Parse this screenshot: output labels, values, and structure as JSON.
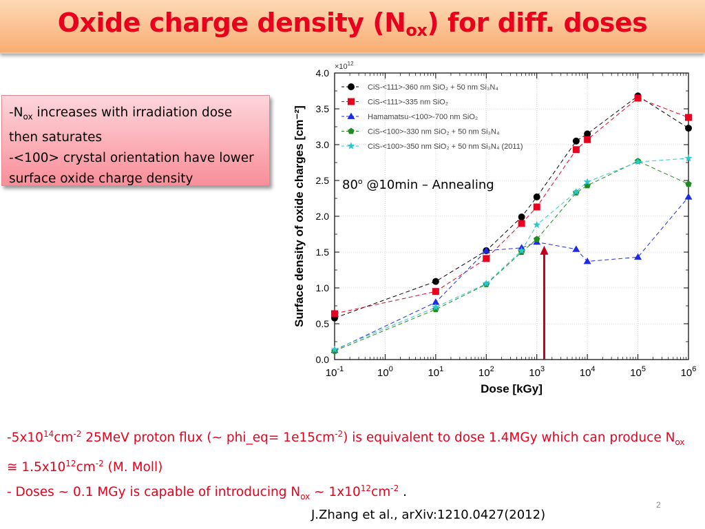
{
  "slide": {
    "title_main": "Oxide charge density (N",
    "title_sub": "ox",
    "title_end": ") for diff. doses",
    "note": {
      "line1_a": "-N",
      "line1_sub": "ox",
      "line1_b": " increases with irradiation dose then saturates",
      "line2": "-<100> crystal orientation have lower surface oxide charge density"
    },
    "annealing": {
      "a": "80",
      "sup": "o",
      "b": " @10min – Annealing"
    },
    "bottom": {
      "p1_a": "-5x10",
      "p1_sup1": "14",
      "p1_b": "cm",
      "p1_sup2": "-2",
      "p1_c": "  25MeV proton flux (~ phi_eq= 1e15cm",
      "p1_sup3": "-2",
      "p1_d": ") is equivalent to dose 1.4MGy which can produce N",
      "p1_sub": "ox",
      "p1_e": " ≅ 1.5x10",
      "p1_sup4": "12",
      "p1_f": "cm",
      "p1_sup5": "-2",
      "p1_g": "  (M. Moll)",
      "p2_a": "- Doses ~ 0.1 MGy is capable of introducing N",
      "p2_sub": "ox",
      "p2_b": " ~ 1x10",
      "p2_sup1": "12",
      "p2_c": "cm",
      "p2_sup2": "-2",
      "p2_d": " ."
    },
    "page_number": "2",
    "citation": "J.Zhang et al., arXiv:1210.0427(2012)"
  },
  "chart_data": {
    "type": "line",
    "xlabel": "Dose [kGy]",
    "ylabel": "Surface density of oxide charges [cm⁻²]",
    "y_multiplier": "×10",
    "y_multiplier_exp": "12",
    "x_scale": "log",
    "xlim": [
      0.1,
      1000000
    ],
    "ylim": [
      0.0,
      4.0
    ],
    "x_ticks": [
      {
        "base": "10",
        "exp": "-1"
      },
      {
        "base": "10",
        "exp": "0"
      },
      {
        "base": "10",
        "exp": "1"
      },
      {
        "base": "10",
        "exp": "2"
      },
      {
        "base": "10",
        "exp": "3"
      },
      {
        "base": "10",
        "exp": "4"
      },
      {
        "base": "10",
        "exp": "5"
      },
      {
        "base": "10",
        "exp": "6"
      }
    ],
    "y_ticks": [
      "0.0",
      "0.5",
      "1.0",
      "1.5",
      "2.0",
      "2.5",
      "3.0",
      "3.5",
      "4.0"
    ],
    "grid": true,
    "legend_position": "top-left",
    "series": [
      {
        "name": "CiS-<111>-360 nm SiO₂ + 50 nm Si₃N₄",
        "color": "#000000",
        "marker": "circle",
        "points": [
          [
            0.1,
            0.58
          ],
          [
            10,
            1.09
          ],
          [
            100,
            1.52
          ],
          [
            500,
            1.99
          ],
          [
            1000,
            2.27
          ],
          [
            6000,
            3.05
          ],
          [
            10000,
            3.15
          ],
          [
            100000,
            3.68
          ],
          [
            1000000,
            3.23
          ]
        ]
      },
      {
        "name": "CiS-<111>-335 nm SiO₂",
        "color": "#e8001c",
        "marker": "square",
        "points": [
          [
            0.1,
            0.64
          ],
          [
            10,
            0.95
          ],
          [
            100,
            1.41
          ],
          [
            500,
            1.9
          ],
          [
            1000,
            2.13
          ],
          [
            6000,
            2.93
          ],
          [
            10000,
            3.07
          ],
          [
            100000,
            3.65
          ],
          [
            1000000,
            3.38
          ]
        ]
      },
      {
        "name": "Hamamatsu-<100>-700 nm SiO₂",
        "color": "#1d2be3",
        "marker": "triangle",
        "points": [
          [
            0.1,
            0.13
          ],
          [
            10,
            0.8
          ],
          [
            100,
            1.52
          ],
          [
            500,
            1.56
          ],
          [
            1000,
            1.64
          ],
          [
            6000,
            1.54
          ],
          [
            10000,
            1.37
          ],
          [
            100000,
            1.43
          ],
          [
            1000000,
            2.27
          ]
        ]
      },
      {
        "name": "CiS-<100>-330 nm SiO₂ + 50 nm Si₃N₄",
        "color": "#1e8c1e",
        "marker": "pentagon",
        "points": [
          [
            0.1,
            0.12
          ],
          [
            10,
            0.7
          ],
          [
            100,
            1.05
          ],
          [
            500,
            1.5
          ],
          [
            1000,
            1.68
          ],
          [
            6000,
            2.33
          ],
          [
            10000,
            2.43
          ],
          [
            100000,
            2.77
          ],
          [
            1000000,
            2.45
          ]
        ]
      },
      {
        "name": "CiS-<100>-350 nm SiO₂ + 50 nm Si₃N₄ (2011)",
        "color": "#2bc7cc",
        "marker": "star",
        "points": [
          [
            0.1,
            0.14
          ],
          [
            10,
            0.73
          ],
          [
            100,
            1.06
          ],
          [
            500,
            1.52
          ],
          [
            1000,
            1.88
          ],
          [
            6000,
            2.34
          ],
          [
            10000,
            2.48
          ],
          [
            100000,
            2.76
          ],
          [
            1000000,
            2.81
          ]
        ]
      }
    ],
    "annotation_arrow": {
      "x": 1400,
      "y_from": 0.0,
      "y_to": 1.55,
      "color": "#c0001c"
    }
  }
}
